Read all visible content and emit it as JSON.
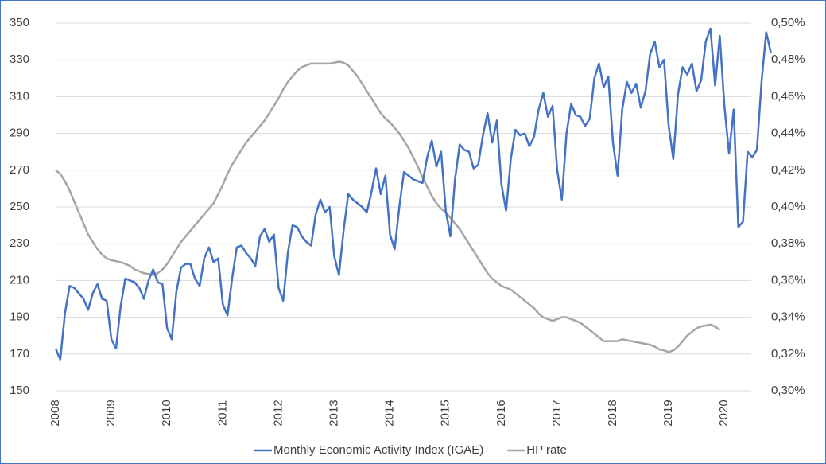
{
  "chart_data": {
    "type": "line",
    "categories": [
      "2008",
      null,
      null,
      null,
      null,
      null,
      null,
      null,
      null,
      null,
      null,
      null,
      "2009",
      null,
      null,
      null,
      null,
      null,
      null,
      null,
      null,
      null,
      null,
      null,
      "2010",
      null,
      null,
      null,
      null,
      null,
      null,
      null,
      null,
      null,
      null,
      null,
      "2011",
      null,
      null,
      null,
      null,
      null,
      null,
      null,
      null,
      null,
      null,
      null,
      "2012",
      null,
      null,
      null,
      null,
      null,
      null,
      null,
      null,
      null,
      null,
      null,
      "2013",
      null,
      null,
      null,
      null,
      null,
      null,
      null,
      null,
      null,
      null,
      null,
      "2014",
      null,
      null,
      null,
      null,
      null,
      null,
      null,
      null,
      null,
      null,
      null,
      "2015",
      null,
      null,
      null,
      null,
      null,
      null,
      null,
      null,
      null,
      null,
      null,
      "2016",
      null,
      null,
      null,
      null,
      null,
      null,
      null,
      null,
      null,
      null,
      null,
      "2017",
      null,
      null,
      null,
      null,
      null,
      null,
      null,
      null,
      null,
      null,
      null,
      "2018",
      null,
      null,
      null,
      null,
      null,
      null,
      null,
      null,
      null,
      null,
      null,
      "2019",
      null,
      null,
      null,
      null,
      null,
      null,
      null,
      null,
      null,
      null,
      null,
      "2020",
      null,
      null,
      null,
      null,
      null,
      null,
      null,
      null,
      null,
      null
    ],
    "series": [
      {
        "name": "Monthly Economic Activity Index (IGAE)",
        "color": "#4472c4",
        "values": [
          173,
          167,
          192,
          207,
          206,
          203,
          200,
          194,
          203,
          208,
          200,
          199,
          178,
          173,
          196,
          211,
          210,
          209,
          206,
          200,
          210,
          216,
          209,
          208,
          184,
          178,
          204,
          217,
          219,
          219,
          211,
          207,
          222,
          228,
          220,
          222,
          197,
          191,
          211,
          228,
          229,
          225,
          222,
          218,
          234,
          238,
          231,
          235,
          206,
          199,
          225,
          240,
          239,
          234,
          231,
          229,
          246,
          254,
          247,
          250,
          223,
          213,
          237,
          257,
          254,
          252,
          250,
          247,
          258,
          271,
          257,
          267,
          235,
          227,
          250,
          269,
          267,
          265,
          264,
          263,
          277,
          286,
          272,
          280,
          248,
          234,
          265,
          284,
          281,
          280,
          271,
          273,
          289,
          301,
          285,
          297,
          262,
          248,
          276,
          292,
          289,
          290,
          283,
          288,
          303,
          312,
          299,
          305,
          270,
          254,
          290,
          306,
          300,
          299,
          294,
          298,
          320,
          328,
          315,
          321,
          285,
          267,
          303,
          318,
          312,
          317,
          304,
          313,
          333,
          340,
          326,
          330,
          294,
          276,
          311,
          326,
          322,
          328,
          313,
          319,
          340,
          347,
          316,
          343,
          305,
          279,
          303,
          239,
          242,
          280,
          277,
          281,
          318,
          345,
          334
        ]
      },
      {
        "name": "HP rate",
        "color": "#a5a5a5",
        "axis": "y2",
        "values": [
          0.42,
          0.418,
          0.414,
          0.409,
          0.403,
          0.397,
          0.391,
          0.385,
          0.381,
          0.377,
          0.374,
          0.372,
          0.371,
          0.3705,
          0.37,
          0.369,
          0.368,
          0.366,
          0.365,
          0.364,
          0.3635,
          0.363,
          0.364,
          0.366,
          0.369,
          0.373,
          0.377,
          0.381,
          0.384,
          0.387,
          0.39,
          0.393,
          0.396,
          0.399,
          0.402,
          0.407,
          0.412,
          0.418,
          0.423,
          0.427,
          0.431,
          0.435,
          0.438,
          0.441,
          0.444,
          0.447,
          0.451,
          0.455,
          0.459,
          0.464,
          0.468,
          0.471,
          0.474,
          0.476,
          0.477,
          0.478,
          0.478,
          0.478,
          0.478,
          0.478,
          0.4785,
          0.479,
          0.4785,
          0.477,
          0.474,
          0.471,
          0.467,
          0.463,
          0.459,
          0.455,
          0.451,
          0.448,
          0.446,
          0.443,
          0.44,
          0.436,
          0.432,
          0.427,
          0.422,
          0.416,
          0.411,
          0.406,
          0.402,
          0.399,
          0.397,
          0.394,
          0.391,
          0.388,
          0.384,
          0.38,
          0.376,
          0.372,
          0.368,
          0.364,
          0.361,
          0.359,
          0.357,
          0.356,
          0.355,
          0.353,
          0.351,
          0.349,
          0.347,
          0.345,
          0.342,
          0.34,
          0.339,
          0.338,
          0.339,
          0.34,
          0.34,
          0.339,
          0.338,
          0.337,
          0.335,
          0.333,
          0.331,
          0.329,
          0.327,
          0.327,
          0.327,
          0.327,
          0.328,
          0.3275,
          0.327,
          0.3265,
          0.326,
          0.3255,
          0.325,
          0.324,
          0.3225,
          0.322,
          0.321,
          0.322,
          0.324,
          0.327,
          0.33,
          0.332,
          0.334,
          0.335,
          0.3355,
          0.336,
          0.335,
          0.333,
          null,
          null,
          null,
          null,
          null,
          null,
          null,
          null,
          null,
          null,
          null
        ]
      }
    ],
    "ylim": [
      150,
      350
    ],
    "yticks": [
      150,
      170,
      190,
      210,
      230,
      250,
      270,
      290,
      310,
      330,
      350
    ],
    "y2lim": [
      0.3,
      0.5
    ],
    "y2ticks": [
      {
        "value": 0.3,
        "label": "0,30%"
      },
      {
        "value": 0.32,
        "label": "0,32%"
      },
      {
        "value": 0.34,
        "label": "0,34%"
      },
      {
        "value": 0.36,
        "label": "0,36%"
      },
      {
        "value": 0.38,
        "label": "0,38%"
      },
      {
        "value": 0.4,
        "label": "0,40%"
      },
      {
        "value": 0.42,
        "label": "0,42%"
      },
      {
        "value": 0.44,
        "label": "0,44%"
      },
      {
        "value": 0.46,
        "label": "0,46%"
      },
      {
        "value": 0.48,
        "label": "0,48%"
      },
      {
        "value": 0.5,
        "label": "0,50%"
      }
    ],
    "grid": true,
    "legend": "bottom"
  }
}
